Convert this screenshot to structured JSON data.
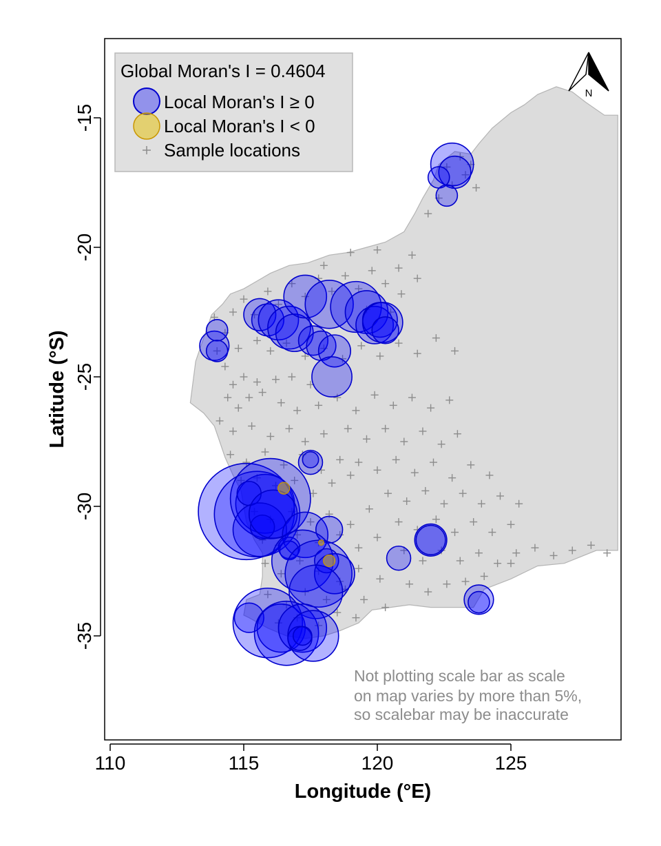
{
  "chart_data": {
    "type": "scatter",
    "subtype": "bubble map",
    "xlabel": "Longitude (°E)",
    "ylabel": "Latitude (°S)",
    "xlim": [
      109.9,
      129.2
    ],
    "ylim": [
      -39.1,
      -12.2
    ],
    "xticks": [
      110,
      115,
      120,
      125
    ],
    "yticks": [
      -15,
      -20,
      -25,
      -30,
      -35
    ],
    "legend": {
      "placement": "top-left",
      "title": "Global Moran's I = 0.4604",
      "items": [
        {
          "label": "Local Moran's I ≥ 0",
          "color": "#0000ff"
        },
        {
          "label": "Local Moran's I < 0",
          "color": "#e6c000"
        },
        {
          "label": "Sample locations",
          "color": "#808080"
        }
      ]
    },
    "north_arrow_label": "N",
    "note": [
      "Not plotting scale bar as scale",
      "on map varies by more than 5%,",
      "so scalebar may be inaccurate"
    ],
    "colors": {
      "land": "#dcdcdc",
      "land_edge": "#b4b4b4",
      "positive_fill": "#0000ff",
      "positive_edge": "#0000cd",
      "negative_fill": "#e6c000",
      "negative_edge": "#c89600",
      "sample_marker": "#8c8c8c",
      "legend_bg": "#e0e0e0",
      "note_text": "#8c8c8c"
    },
    "coastline": [
      [
        113.0,
        -26.0
      ],
      [
        113.2,
        -24.4
      ],
      [
        113.4,
        -23.8
      ],
      [
        113.6,
        -23.2
      ],
      [
        113.8,
        -22.6
      ],
      [
        114.2,
        -22.2
      ],
      [
        114.5,
        -21.8
      ],
      [
        115.0,
        -21.6
      ],
      [
        115.5,
        -21.3
      ],
      [
        116.0,
        -21.0
      ],
      [
        116.7,
        -20.7
      ],
      [
        117.4,
        -20.6
      ],
      [
        118.2,
        -20.3
      ],
      [
        118.9,
        -20.2
      ],
      [
        119.6,
        -20.0
      ],
      [
        120.3,
        -19.8
      ],
      [
        121.0,
        -19.4
      ],
      [
        121.4,
        -18.7
      ],
      [
        121.7,
        -18.1
      ],
      [
        122.1,
        -17.4
      ],
      [
        122.3,
        -16.8
      ],
      [
        122.9,
        -16.3
      ],
      [
        123.5,
        -16.4
      ],
      [
        123.8,
        -16.0
      ],
      [
        124.3,
        -15.4
      ],
      [
        125.0,
        -14.8
      ],
      [
        125.5,
        -14.5
      ],
      [
        126.0,
        -14.1
      ],
      [
        126.7,
        -13.8
      ],
      [
        127.3,
        -14.0
      ],
      [
        127.8,
        -14.4
      ],
      [
        128.5,
        -14.9
      ],
      [
        129.0,
        -14.9
      ],
      [
        129.0,
        -31.7
      ],
      [
        128.2,
        -31.7
      ],
      [
        127.0,
        -32.2
      ],
      [
        126.0,
        -32.3
      ],
      [
        125.0,
        -32.8
      ],
      [
        124.0,
        -33.2
      ],
      [
        123.6,
        -33.9
      ],
      [
        122.8,
        -33.9
      ],
      [
        122.0,
        -33.9
      ],
      [
        121.2,
        -33.8
      ],
      [
        120.5,
        -33.9
      ],
      [
        119.8,
        -34.0
      ],
      [
        119.3,
        -34.5
      ],
      [
        118.6,
        -34.8
      ],
      [
        118.0,
        -35.0
      ],
      [
        117.3,
        -35.1
      ],
      [
        116.6,
        -35.0
      ],
      [
        115.9,
        -34.7
      ],
      [
        115.2,
        -34.3
      ],
      [
        115.0,
        -34.2
      ],
      [
        115.1,
        -33.6
      ],
      [
        115.6,
        -33.4
      ],
      [
        115.7,
        -32.7
      ],
      [
        115.7,
        -31.8
      ],
      [
        115.4,
        -31.3
      ],
      [
        115.1,
        -30.6
      ],
      [
        115.0,
        -30.0
      ],
      [
        114.9,
        -29.4
      ],
      [
        114.6,
        -28.8
      ],
      [
        114.3,
        -28.1
      ],
      [
        114.1,
        -27.5
      ],
      [
        113.9,
        -26.9
      ],
      [
        113.5,
        -26.4
      ]
    ],
    "sample_locations": [
      [
        114.3,
        -24.6
      ],
      [
        114.6,
        -25.3
      ],
      [
        115.0,
        -25.0
      ],
      [
        115.5,
        -25.2
      ],
      [
        116.2,
        -25.1
      ],
      [
        116.8,
        -25.0
      ],
      [
        117.5,
        -25.3
      ],
      [
        114.4,
        -25.8
      ],
      [
        114.8,
        -26.2
      ],
      [
        115.2,
        -25.8
      ],
      [
        115.7,
        -25.6
      ],
      [
        116.4,
        -26.0
      ],
      [
        117.0,
        -26.3
      ],
      [
        117.8,
        -26.1
      ],
      [
        114.1,
        -26.7
      ],
      [
        114.6,
        -27.1
      ],
      [
        115.3,
        -26.9
      ],
      [
        116.0,
        -27.3
      ],
      [
        116.7,
        -27.0
      ],
      [
        117.3,
        -27.5
      ],
      [
        118.0,
        -27.2
      ],
      [
        114.5,
        -28.0
      ],
      [
        115.1,
        -28.3
      ],
      [
        115.8,
        -27.9
      ],
      [
        116.5,
        -28.4
      ],
      [
        117.2,
        -28.0
      ],
      [
        117.9,
        -28.6
      ],
      [
        118.6,
        -28.2
      ],
      [
        114.9,
        -29.0
      ],
      [
        115.5,
        -28.9
      ],
      [
        116.2,
        -29.2
      ],
      [
        116.9,
        -29.0
      ],
      [
        117.6,
        -29.5
      ],
      [
        118.3,
        -29.1
      ],
      [
        119.0,
        -28.8
      ],
      [
        115.4,
        -30.2
      ],
      [
        116.0,
        -30.5
      ],
      [
        116.8,
        -30.2
      ],
      [
        117.5,
        -30.6
      ],
      [
        118.2,
        -30.3
      ],
      [
        119.0,
        -30.7
      ],
      [
        119.7,
        -30.1
      ],
      [
        115.7,
        -31.3
      ],
      [
        116.3,
        -31.5
      ],
      [
        117.0,
        -31.1
      ],
      [
        117.8,
        -31.4
      ],
      [
        118.6,
        -31.1
      ],
      [
        119.3,
        -31.6
      ],
      [
        120.0,
        -31.2
      ],
      [
        115.8,
        -32.2
      ],
      [
        116.4,
        -32.6
      ],
      [
        117.1,
        -32.1
      ],
      [
        117.8,
        -32.5
      ],
      [
        118.6,
        -32.9
      ],
      [
        119.3,
        -32.4
      ],
      [
        120.1,
        -32.8
      ],
      [
        115.9,
        -33.4
      ],
      [
        116.6,
        -33.8
      ],
      [
        117.3,
        -33.3
      ],
      [
        118.1,
        -33.6
      ],
      [
        118.8,
        -33.2
      ],
      [
        119.5,
        -33.6
      ],
      [
        120.3,
        -33.9
      ],
      [
        116.3,
        -34.5
      ],
      [
        117.0,
        -34.3
      ],
      [
        117.8,
        -34.6
      ],
      [
        118.5,
        -34.1
      ],
      [
        119.2,
        -34.3
      ],
      [
        118.5,
        -25.8
      ],
      [
        119.2,
        -26.3
      ],
      [
        119.9,
        -25.7
      ],
      [
        120.6,
        -26.1
      ],
      [
        121.3,
        -25.8
      ],
      [
        122.0,
        -26.2
      ],
      [
        122.7,
        -25.9
      ],
      [
        118.9,
        -27.0
      ],
      [
        119.6,
        -27.4
      ],
      [
        120.3,
        -27.0
      ],
      [
        121.0,
        -27.5
      ],
      [
        121.7,
        -27.1
      ],
      [
        122.4,
        -27.6
      ],
      [
        123.0,
        -27.2
      ],
      [
        119.3,
        -28.3
      ],
      [
        120.0,
        -28.6
      ],
      [
        120.7,
        -28.2
      ],
      [
        121.4,
        -28.7
      ],
      [
        122.1,
        -28.3
      ],
      [
        122.8,
        -28.9
      ],
      [
        123.5,
        -28.4
      ],
      [
        124.2,
        -28.8
      ],
      [
        120.4,
        -29.5
      ],
      [
        121.1,
        -29.8
      ],
      [
        121.8,
        -29.4
      ],
      [
        122.5,
        -29.9
      ],
      [
        123.2,
        -29.5
      ],
      [
        123.9,
        -29.9
      ],
      [
        124.6,
        -29.6
      ],
      [
        125.3,
        -29.9
      ],
      [
        120.8,
        -30.6
      ],
      [
        121.5,
        -30.9
      ],
      [
        122.2,
        -30.5
      ],
      [
        122.9,
        -31.0
      ],
      [
        123.6,
        -30.6
      ],
      [
        124.3,
        -31.0
      ],
      [
        125.0,
        -30.7
      ],
      [
        121.0,
        -31.7
      ],
      [
        121.7,
        -32.1
      ],
      [
        122.4,
        -31.7
      ],
      [
        123.1,
        -32.1
      ],
      [
        123.8,
        -31.8
      ],
      [
        124.5,
        -32.2
      ],
      [
        125.2,
        -31.8
      ],
      [
        125.9,
        -31.6
      ],
      [
        126.6,
        -31.9
      ],
      [
        127.3,
        -31.7
      ],
      [
        128.0,
        -31.5
      ],
      [
        128.6,
        -31.8
      ],
      [
        121.2,
        -33.0
      ],
      [
        121.9,
        -33.3
      ],
      [
        122.6,
        -33.0
      ],
      [
        123.3,
        -32.9
      ],
      [
        124.0,
        -32.7
      ],
      [
        125.0,
        -32.2
      ],
      [
        113.9,
        -22.7
      ],
      [
        114.3,
        -23.3
      ],
      [
        114.6,
        -22.5
      ],
      [
        115.0,
        -22.0
      ],
      [
        115.4,
        -22.6
      ],
      [
        115.9,
        -21.7
      ],
      [
        116.3,
        -22.2
      ],
      [
        116.8,
        -21.4
      ],
      [
        117.3,
        -21.9
      ],
      [
        117.8,
        -21.2
      ],
      [
        118.3,
        -21.7
      ],
      [
        118.8,
        -21.1
      ],
      [
        119.3,
        -21.6
      ],
      [
        119.8,
        -20.9
      ],
      [
        120.3,
        -21.4
      ],
      [
        120.8,
        -20.8
      ],
      [
        121.3,
        -20.3
      ],
      [
        120.9,
        -21.8
      ],
      [
        121.5,
        -21.2
      ],
      [
        118.0,
        -20.7
      ],
      [
        119.0,
        -20.2
      ],
      [
        120.0,
        -20.1
      ],
      [
        115.5,
        -23.6
      ],
      [
        116.0,
        -24.0
      ],
      [
        116.6,
        -23.7
      ],
      [
        117.3,
        -24.2
      ],
      [
        118.0,
        -23.9
      ],
      [
        118.7,
        -24.3
      ],
      [
        119.4,
        -23.8
      ],
      [
        120.1,
        -24.2
      ],
      [
        120.8,
        -23.7
      ],
      [
        121.5,
        -24.1
      ],
      [
        122.2,
        -23.5
      ],
      [
        122.9,
        -24.0
      ],
      [
        121.9,
        -18.7
      ],
      [
        122.3,
        -18.1
      ],
      [
        122.8,
        -17.6
      ],
      [
        123.3,
        -17.2
      ],
      [
        123.7,
        -17.7
      ],
      [
        123.5,
        -16.8
      ],
      [
        122.6,
        -16.9
      ],
      [
        123.1,
        -16.5
      ],
      [
        119.6,
        -22.4
      ],
      [
        120.5,
        -22.5
      ],
      [
        114.8,
        -23.9
      ],
      [
        114.0,
        -24.0
      ]
    ],
    "positive_circles": [
      [
        122.8,
        -16.8,
        0.8
      ],
      [
        122.9,
        -17.1,
        0.6
      ],
      [
        122.3,
        -17.3,
        0.4
      ],
      [
        122.6,
        -18.0,
        0.4
      ],
      [
        113.9,
        -23.8,
        0.55
      ],
      [
        114.0,
        -23.2,
        0.4
      ],
      [
        114.0,
        -24.0,
        0.4
      ],
      [
        115.6,
        -22.6,
        0.6
      ],
      [
        115.9,
        -22.8,
        0.6
      ],
      [
        116.3,
        -22.8,
        0.75
      ],
      [
        116.7,
        -23.1,
        0.8
      ],
      [
        116.9,
        -23.3,
        0.7
      ],
      [
        117.3,
        -21.9,
        0.8
      ],
      [
        117.6,
        -23.6,
        0.55
      ],
      [
        117.9,
        -23.8,
        0.55
      ],
      [
        118.2,
        -22.2,
        0.9
      ],
      [
        118.4,
        -24.0,
        0.6
      ],
      [
        118.3,
        -25.0,
        0.75
      ],
      [
        119.2,
        -22.3,
        0.95
      ],
      [
        119.6,
        -22.5,
        0.8
      ],
      [
        119.9,
        -23.0,
        0.7
      ],
      [
        120.1,
        -22.8,
        0.65
      ],
      [
        120.2,
        -22.9,
        0.75
      ],
      [
        120.3,
        -23.2,
        0.5
      ],
      [
        117.5,
        -28.3,
        0.45
      ],
      [
        117.5,
        -28.2,
        0.3
      ],
      [
        115.1,
        -30.2,
        1.8
      ],
      [
        115.5,
        -30.3,
        1.6
      ],
      [
        115.8,
        -29.9,
        1.1
      ],
      [
        116.0,
        -29.7,
        1.5
      ],
      [
        115.6,
        -30.9,
        1.0
      ],
      [
        115.2,
        -29.5,
        0.45
      ],
      [
        115.7,
        -30.8,
        0.45
      ],
      [
        116.1,
        -30.3,
        0.9
      ],
      [
        117.3,
        -31.1,
        0.85
      ],
      [
        118.2,
        -30.9,
        0.5
      ],
      [
        116.7,
        -31.6,
        0.4
      ],
      [
        116.7,
        -31.7,
        0.35
      ],
      [
        117.2,
        -32.1,
        1.15
      ],
      [
        117.8,
        -32.6,
        1.25
      ],
      [
        118.1,
        -32.1,
        0.45
      ],
      [
        118.4,
        -32.6,
        0.75
      ],
      [
        117.7,
        -33.3,
        1.0
      ],
      [
        120.8,
        -32.0,
        0.45
      ],
      [
        122.0,
        -31.3,
        0.6
      ],
      [
        122.0,
        -31.3,
        0.55
      ],
      [
        123.8,
        -33.6,
        0.55
      ],
      [
        123.8,
        -33.7,
        0.4
      ],
      [
        115.2,
        -34.3,
        0.55
      ],
      [
        115.9,
        -34.5,
        1.3
      ],
      [
        116.4,
        -34.7,
        0.9
      ],
      [
        116.6,
        -34.9,
        1.2
      ],
      [
        117.2,
        -34.7,
        0.9
      ],
      [
        117.6,
        -35.0,
        0.95
      ],
      [
        117.1,
        -35.1,
        0.45
      ],
      [
        117.2,
        -35.0,
        0.35
      ]
    ],
    "negative_circles": [
      [
        116.5,
        -29.3,
        0.22
      ],
      [
        117.9,
        -31.4,
        0.1
      ],
      [
        118.2,
        -32.1,
        0.22
      ]
    ]
  }
}
